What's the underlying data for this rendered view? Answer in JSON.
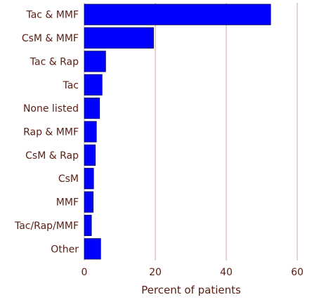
{
  "chart_data": {
    "type": "bar",
    "orientation": "horizontal",
    "categories": [
      "Tac & MMF",
      "CsM & MMF",
      "Tac & Rap",
      "Tac",
      "None listed",
      "Rap & MMF",
      "CsM & Rap",
      "CsM",
      "MMF",
      "Tac/Rap/MMF",
      "Other"
    ],
    "values": [
      52.5,
      19.5,
      6,
      5,
      4.3,
      3.4,
      3.1,
      2.6,
      2.5,
      2,
      4.6
    ],
    "xlabel": "Percent of patients",
    "xlim": [
      0,
      60
    ],
    "xticks": [
      0,
      20,
      40,
      60
    ],
    "grid": true,
    "legend": "none",
    "colors": {
      "bar": "#0000ff",
      "bar_edge": "#00004d",
      "grid": "#c9a89a",
      "text": "#5a1e12"
    }
  }
}
